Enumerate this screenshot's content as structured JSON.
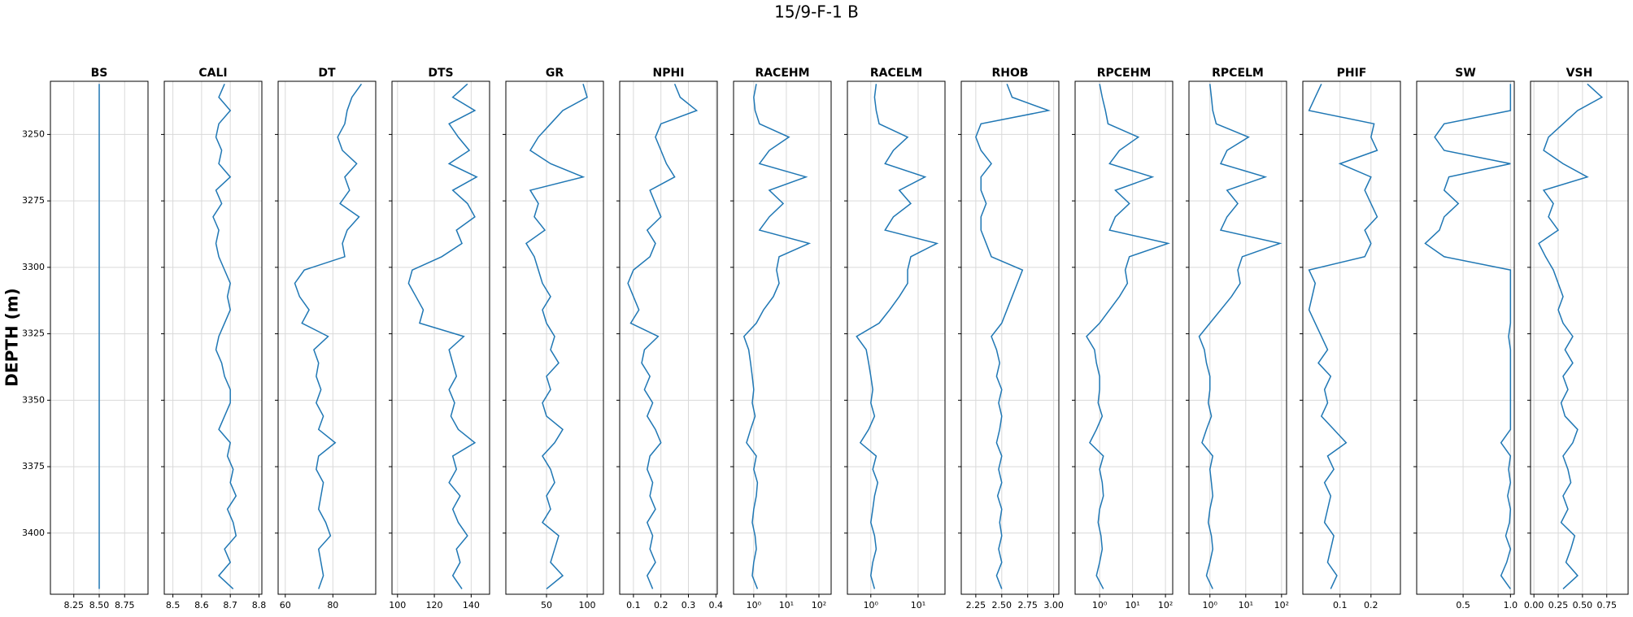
{
  "figure": {
    "title": "15/9-F-1 B",
    "ylabel": "DEPTH (m)",
    "ylim": [
      3230,
      3423
    ],
    "y_inverted": true,
    "yticks": [
      3250,
      3275,
      3300,
      3325,
      3350,
      3375,
      3400
    ],
    "grid": true,
    "depth": [
      3231,
      3236,
      3241,
      3246,
      3251,
      3256,
      3261,
      3266,
      3271,
      3276,
      3281,
      3286,
      3291,
      3296,
      3301,
      3306,
      3311,
      3316,
      3321,
      3326,
      3331,
      3336,
      3341,
      3346,
      3351,
      3356,
      3361,
      3366,
      3371,
      3376,
      3381,
      3386,
      3391,
      3396,
      3401,
      3406,
      3411,
      3416,
      3421
    ]
  },
  "chart_data": [
    {
      "type": "line",
      "title": "BS",
      "color": "#1f77b4",
      "xscale": "linear",
      "xlim": [
        8.02,
        8.98
      ],
      "xticks": [
        8.25,
        {
          "value": 8.5,
          "label": "8.50"
        },
        8.75
      ],
      "values": [
        8.5,
        8.5,
        8.5,
        8.5,
        8.5,
        8.5,
        8.5,
        8.5,
        8.5,
        8.5,
        8.5,
        8.5,
        8.5,
        8.5,
        8.5,
        8.5,
        8.5,
        8.5,
        8.5,
        8.5,
        8.5,
        8.5,
        8.5,
        8.5,
        8.5,
        8.5,
        8.5,
        8.5,
        8.5,
        8.5,
        8.5,
        8.5,
        8.5,
        8.5,
        8.5,
        8.5,
        8.5,
        8.5,
        8.5
      ]
    },
    {
      "type": "line",
      "title": "CALI",
      "color": "#1f77b4",
      "xscale": "linear",
      "xlim": [
        8.47,
        8.81
      ],
      "xticks": [
        8.5,
        8.6,
        8.7,
        8.8
      ],
      "values": [
        8.68,
        8.66,
        8.7,
        8.66,
        8.65,
        8.67,
        8.66,
        8.7,
        8.65,
        8.67,
        8.64,
        8.66,
        8.65,
        8.66,
        8.68,
        8.7,
        8.69,
        8.7,
        8.68,
        8.66,
        8.65,
        8.67,
        8.68,
        8.7,
        8.7,
        8.68,
        8.66,
        8.7,
        8.69,
        8.71,
        8.7,
        8.72,
        8.69,
        8.71,
        8.72,
        8.68,
        8.7,
        8.66,
        8.71
      ]
    },
    {
      "type": "line",
      "title": "DT",
      "color": "#1f77b4",
      "xscale": "linear",
      "xlim": [
        57,
        98
      ],
      "xticks": [
        60,
        80
      ],
      "values": [
        92,
        88,
        86,
        85,
        82,
        84,
        90,
        85,
        87,
        83,
        91,
        86,
        84,
        85,
        68,
        64,
        66,
        70,
        67,
        78,
        72,
        74,
        73,
        75,
        73,
        76,
        74,
        81,
        74,
        73,
        76,
        75,
        74,
        77,
        79,
        74,
        75,
        76,
        74
      ]
    },
    {
      "type": "line",
      "title": "DTS",
      "color": "#1f77b4",
      "xscale": "linear",
      "xlim": [
        97,
        150
      ],
      "xticks": [
        100,
        120,
        140
      ],
      "values": [
        138,
        130,
        142,
        128,
        133,
        139,
        128,
        143,
        130,
        138,
        142,
        132,
        135,
        124,
        108,
        106,
        110,
        114,
        112,
        136,
        128,
        130,
        132,
        128,
        131,
        129,
        133,
        142,
        130,
        132,
        128,
        134,
        130,
        133,
        138,
        132,
        134,
        130,
        135
      ]
    },
    {
      "type": "line",
      "title": "GR",
      "color": "#1f77b4",
      "xscale": "linear",
      "xlim": [
        0,
        120
      ],
      "xticks": [
        50,
        100
      ],
      "values": [
        95,
        100,
        70,
        55,
        40,
        30,
        55,
        95,
        30,
        40,
        35,
        48,
        25,
        35,
        40,
        45,
        55,
        45,
        50,
        60,
        55,
        65,
        50,
        55,
        45,
        50,
        70,
        60,
        45,
        55,
        60,
        50,
        55,
        45,
        65,
        60,
        55,
        70,
        50
      ]
    },
    {
      "type": "line",
      "title": "NPHI",
      "color": "#1f77b4",
      "xscale": "linear",
      "xlim": [
        0.05,
        0.405
      ],
      "xticks": [
        0.1,
        0.2,
        0.3,
        0.4
      ],
      "values": [
        0.25,
        0.27,
        0.33,
        0.2,
        0.18,
        0.2,
        0.22,
        0.25,
        0.16,
        0.18,
        0.2,
        0.15,
        0.18,
        0.16,
        0.1,
        0.08,
        0.1,
        0.12,
        0.09,
        0.19,
        0.14,
        0.13,
        0.16,
        0.14,
        0.17,
        0.15,
        0.18,
        0.2,
        0.16,
        0.15,
        0.17,
        0.16,
        0.18,
        0.15,
        0.17,
        0.16,
        0.18,
        0.15,
        0.17
      ]
    },
    {
      "type": "line",
      "title": "RACEHM",
      "color": "#1f77b4",
      "xscale": "log",
      "xlim": [
        0.24,
        237
      ],
      "xticks": [
        {
          "value": 1,
          "label": "10⁰"
        },
        {
          "value": 10,
          "label": "10¹"
        },
        {
          "value": 100,
          "label": "10²"
        }
      ],
      "values": [
        1.2,
        1.0,
        1.1,
        1.5,
        12,
        3,
        1.5,
        40,
        3,
        8,
        3,
        1.5,
        50,
        6,
        5,
        6,
        4,
        2,
        1.2,
        0.5,
        0.7,
        0.8,
        0.9,
        1.0,
        0.9,
        1.1,
        0.8,
        0.6,
        1.2,
        1.0,
        1.3,
        1.2,
        1.0,
        0.9,
        1.1,
        1.2,
        1.0,
        0.9,
        1.3
      ]
    },
    {
      "type": "line",
      "title": "RACELM",
      "color": "#1f77b4",
      "xscale": "log",
      "xlim": [
        0.32,
        37
      ],
      "xticks": [
        {
          "value": 1,
          "label": "10⁰"
        },
        {
          "value": 10,
          "label": "10¹"
        }
      ],
      "values": [
        1.3,
        1.2,
        1.3,
        1.5,
        6,
        3,
        2,
        14,
        4,
        7,
        3,
        2,
        25,
        7,
        6,
        6,
        4,
        2.5,
        1.5,
        0.5,
        0.8,
        0.9,
        1.0,
        1.1,
        1.0,
        1.2,
        0.9,
        0.6,
        1.3,
        1.1,
        1.4,
        1.2,
        1.1,
        1.0,
        1.2,
        1.3,
        1.1,
        1.0,
        1.2
      ]
    },
    {
      "type": "line",
      "title": "RHOB",
      "color": "#1f77b4",
      "xscale": "linear",
      "xlim": [
        2.11,
        3.05
      ],
      "xticks": [
        2.25,
        {
          "value": 2.5,
          "label": "2.50"
        },
        2.75,
        {
          "value": 3,
          "label": "3.00"
        }
      ],
      "values": [
        2.55,
        2.6,
        2.95,
        2.3,
        2.25,
        2.3,
        2.4,
        2.3,
        2.3,
        2.35,
        2.3,
        2.3,
        2.35,
        2.4,
        2.7,
        2.65,
        2.6,
        2.55,
        2.5,
        2.4,
        2.45,
        2.48,
        2.45,
        2.5,
        2.47,
        2.5,
        2.48,
        2.45,
        2.5,
        2.47,
        2.5,
        2.46,
        2.5,
        2.48,
        2.5,
        2.47,
        2.5,
        2.45,
        2.5
      ]
    },
    {
      "type": "line",
      "title": "RPCEHM",
      "color": "#1f77b4",
      "xscale": "log",
      "xlim": [
        0.18,
        166
      ],
      "xticks": [
        {
          "value": 1,
          "label": "10⁰"
        },
        {
          "value": 10,
          "label": "10¹"
        },
        {
          "value": 100,
          "label": "10²"
        }
      ],
      "values": [
        1.0,
        1.2,
        1.5,
        1.8,
        15,
        4,
        2,
        40,
        3,
        8,
        3,
        2,
        120,
        8,
        6,
        7,
        4,
        2,
        1.0,
        0.4,
        0.7,
        0.8,
        1.0,
        1.0,
        0.9,
        1.2,
        0.8,
        0.5,
        1.3,
        1.0,
        1.2,
        1.3,
        1.0,
        0.9,
        1.1,
        1.2,
        1.0,
        0.8,
        1.3
      ]
    },
    {
      "type": "line",
      "title": "RPCELM",
      "color": "#1f77b4",
      "xscale": "log",
      "xlim": [
        0.26,
        138
      ],
      "xticks": [
        {
          "value": 1,
          "label": "10⁰"
        },
        {
          "value": 10,
          "label": "10¹"
        },
        {
          "value": 100,
          "label": "10²"
        }
      ],
      "values": [
        1.0,
        1.1,
        1.2,
        1.5,
        12,
        3,
        2,
        35,
        3,
        6,
        3,
        2,
        90,
        8,
        6,
        7,
        4,
        2,
        1.0,
        0.5,
        0.7,
        0.8,
        1.0,
        1.0,
        0.9,
        1.1,
        0.8,
        0.6,
        1.2,
        1.0,
        1.1,
        1.2,
        1.0,
        0.9,
        1.1,
        1.2,
        1.0,
        0.8,
        1.2
      ]
    },
    {
      "type": "line",
      "title": "PHIF",
      "color": "#1f77b4",
      "xscale": "linear",
      "xlim": [
        -0.02,
        0.295
      ],
      "xticks": [
        0.1,
        0.2
      ],
      "values": [
        0.04,
        0.02,
        0.0,
        0.21,
        0.2,
        0.22,
        0.1,
        0.2,
        0.18,
        0.2,
        0.22,
        0.18,
        0.2,
        0.18,
        0.0,
        0.02,
        0.01,
        0.0,
        0.02,
        0.04,
        0.06,
        0.03,
        0.07,
        0.05,
        0.06,
        0.04,
        0.08,
        0.12,
        0.06,
        0.08,
        0.05,
        0.07,
        0.06,
        0.05,
        0.08,
        0.07,
        0.06,
        0.09,
        0.07
      ]
    },
    {
      "type": "line",
      "title": "SW",
      "color": "#1f77b4",
      "xscale": "linear",
      "xlim": [
        0.01,
        1.04
      ],
      "xticks": [
        0.5,
        {
          "value": 1,
          "label": "1.0"
        }
      ],
      "values": [
        1,
        1,
        1,
        0.3,
        0.2,
        0.3,
        1,
        0.35,
        0.3,
        0.45,
        0.3,
        0.25,
        0.1,
        0.3,
        1,
        1,
        1,
        1,
        1,
        0.98,
        1,
        1,
        1,
        1,
        1,
        1,
        1,
        0.9,
        1,
        0.98,
        1,
        0.97,
        1,
        0.99,
        0.95,
        1,
        0.96,
        0.9,
        1
      ]
    },
    {
      "type": "line",
      "title": "VSH",
      "color": "#1f77b4",
      "xscale": "linear",
      "xlim": [
        -0.035,
        0.97
      ],
      "xticks": [
        {
          "value": 0,
          "label": "0.00"
        },
        0.25,
        {
          "value": 0.5,
          "label": "0.50"
        },
        0.75
      ],
      "values": [
        0.55,
        0.7,
        0.45,
        0.3,
        0.15,
        0.1,
        0.3,
        0.55,
        0.1,
        0.2,
        0.15,
        0.25,
        0.05,
        0.12,
        0.2,
        0.25,
        0.3,
        0.25,
        0.3,
        0.4,
        0.32,
        0.4,
        0.3,
        0.35,
        0.28,
        0.32,
        0.45,
        0.4,
        0.3,
        0.35,
        0.38,
        0.3,
        0.35,
        0.28,
        0.42,
        0.38,
        0.33,
        0.45,
        0.3
      ]
    }
  ]
}
